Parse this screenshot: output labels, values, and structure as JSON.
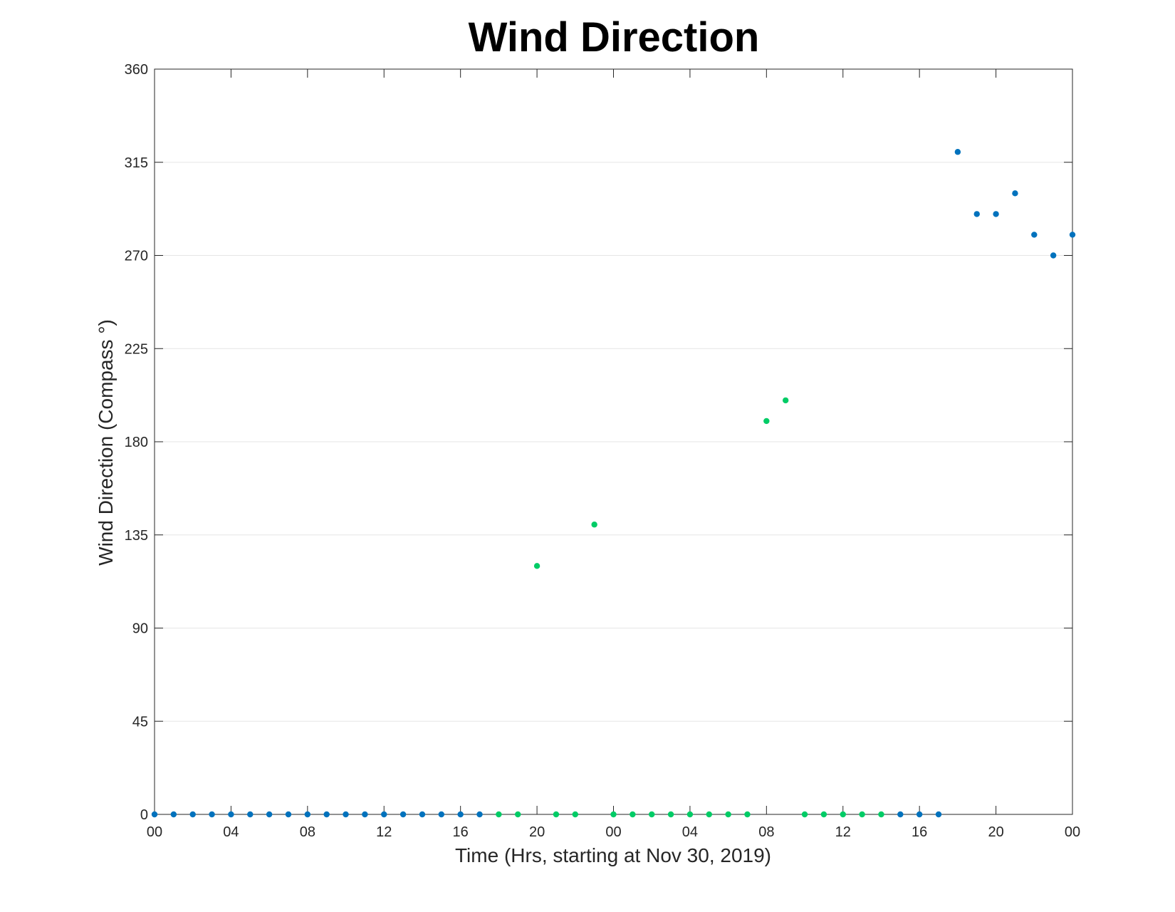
{
  "chart_data": {
    "type": "scatter",
    "title": "Wind Direction",
    "xlabel": "Time (Hrs, starting at Nov 30, 2019)",
    "ylabel": "Wind Direction (Compass °)",
    "xlim": [
      "2019-11-30 00:00",
      "2019-12-02 00:00"
    ],
    "ylim": [
      0,
      360
    ],
    "x_ticks": [
      "00",
      "04",
      "08",
      "12",
      "16",
      "20",
      "00",
      "04",
      "08",
      "12",
      "16",
      "20",
      "00"
    ],
    "y_ticks": [
      0,
      45,
      90,
      135,
      180,
      225,
      270,
      315,
      360
    ],
    "grid": "horizontal",
    "legend": "none",
    "series": [
      {
        "color": "#0072BD",
        "points": [
          {
            "x": "2019-11-30 00:00",
            "y": 0
          },
          {
            "x": "2019-11-30 01:00",
            "y": 0
          },
          {
            "x": "2019-11-30 02:00",
            "y": 0
          },
          {
            "x": "2019-11-30 03:00",
            "y": 0
          },
          {
            "x": "2019-11-30 04:00",
            "y": 0
          },
          {
            "x": "2019-11-30 05:00",
            "y": 0
          },
          {
            "x": "2019-11-30 06:00",
            "y": 0
          },
          {
            "x": "2019-11-30 07:00",
            "y": 0
          },
          {
            "x": "2019-11-30 08:00",
            "y": 0
          },
          {
            "x": "2019-11-30 09:00",
            "y": 0
          },
          {
            "x": "2019-11-30 10:00",
            "y": 0
          },
          {
            "x": "2019-11-30 11:00",
            "y": 0
          },
          {
            "x": "2019-11-30 12:00",
            "y": 0
          },
          {
            "x": "2019-11-30 13:00",
            "y": 0
          },
          {
            "x": "2019-11-30 14:00",
            "y": 0
          },
          {
            "x": "2019-11-30 15:00",
            "y": 0
          },
          {
            "x": "2019-11-30 16:00",
            "y": 0
          },
          {
            "x": "2019-11-30 17:00",
            "y": 0
          },
          {
            "x": "2019-12-01 15:00",
            "y": 0
          },
          {
            "x": "2019-12-01 16:00",
            "y": 0
          },
          {
            "x": "2019-12-01 17:00",
            "y": 0
          },
          {
            "x": "2019-12-01 18:00",
            "y": 320
          },
          {
            "x": "2019-12-01 19:00",
            "y": 290
          },
          {
            "x": "2019-12-01 20:00",
            "y": 290
          },
          {
            "x": "2019-12-01 21:00",
            "y": 300
          },
          {
            "x": "2019-12-01 22:00",
            "y": 280
          },
          {
            "x": "2019-12-01 23:00",
            "y": 270
          },
          {
            "x": "2019-12-02 00:00",
            "y": 280
          }
        ]
      },
      {
        "color": "#00CC66",
        "points": [
          {
            "x": "2019-11-30 18:00",
            "y": 0
          },
          {
            "x": "2019-11-30 19:00",
            "y": 0
          },
          {
            "x": "2019-11-30 20:00",
            "y": 120
          },
          {
            "x": "2019-11-30 21:00",
            "y": 0
          },
          {
            "x": "2019-11-30 22:00",
            "y": 0
          },
          {
            "x": "2019-11-30 23:00",
            "y": 140
          },
          {
            "x": "2019-12-01 00:00",
            "y": 0
          },
          {
            "x": "2019-12-01 01:00",
            "y": 0
          },
          {
            "x": "2019-12-01 02:00",
            "y": 0
          },
          {
            "x": "2019-12-01 03:00",
            "y": 0
          },
          {
            "x": "2019-12-01 04:00",
            "y": 0
          },
          {
            "x": "2019-12-01 05:00",
            "y": 0
          },
          {
            "x": "2019-12-01 06:00",
            "y": 0
          },
          {
            "x": "2019-12-01 07:00",
            "y": 0
          },
          {
            "x": "2019-12-01 08:00",
            "y": 190
          },
          {
            "x": "2019-12-01 09:00",
            "y": 200
          },
          {
            "x": "2019-12-01 10:00",
            "y": 0
          },
          {
            "x": "2019-12-01 11:00",
            "y": 0
          },
          {
            "x": "2019-12-01 12:00",
            "y": 0
          },
          {
            "x": "2019-12-01 13:00",
            "y": 0
          },
          {
            "x": "2019-12-01 14:00",
            "y": 0
          }
        ]
      }
    ]
  }
}
